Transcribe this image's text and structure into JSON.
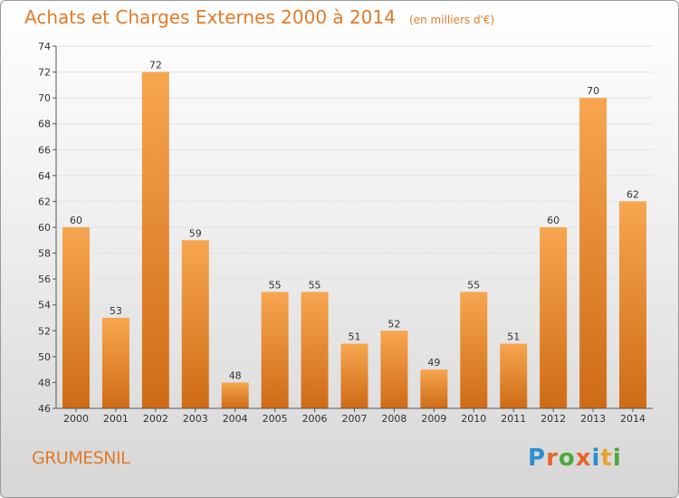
{
  "header": {
    "title": "Achats et Charges Externes 2000 à 2014",
    "unit": "(en milliers d'€)"
  },
  "footer": {
    "town": "GRUMESNIL",
    "logo_letters": [
      "P",
      "r",
      "o",
      "x",
      "i",
      "t",
      "i"
    ],
    "logo_colors": [
      "#2c8fd1",
      "#e8642c",
      "#4aa83a",
      "#e8642c",
      "#2c8fd1",
      "#e8a22c",
      "#4aa83a"
    ]
  },
  "colors": {
    "bar_light": "#f7a64f",
    "bar_dark": "#cf6b16",
    "axis": "#555555",
    "grid": "#e2e2e2",
    "text": "#333333"
  },
  "chart_data": {
    "type": "bar",
    "title": "Achats et Charges Externes 2000 à 2014",
    "subtitle": "(en milliers d'€)",
    "categories": [
      "2000",
      "2001",
      "2002",
      "2003",
      "2004",
      "2005",
      "2006",
      "2007",
      "2008",
      "2009",
      "2010",
      "2011",
      "2012",
      "2013",
      "2014"
    ],
    "values": [
      60,
      53,
      72,
      59,
      48,
      55,
      55,
      51,
      52,
      49,
      55,
      51,
      60,
      70,
      62
    ],
    "ylim": [
      46,
      74
    ],
    "yticks": [
      46,
      48,
      50,
      52,
      54,
      56,
      58,
      60,
      62,
      64,
      66,
      68,
      70,
      72,
      74
    ],
    "grid": true,
    "data_labels": true
  }
}
